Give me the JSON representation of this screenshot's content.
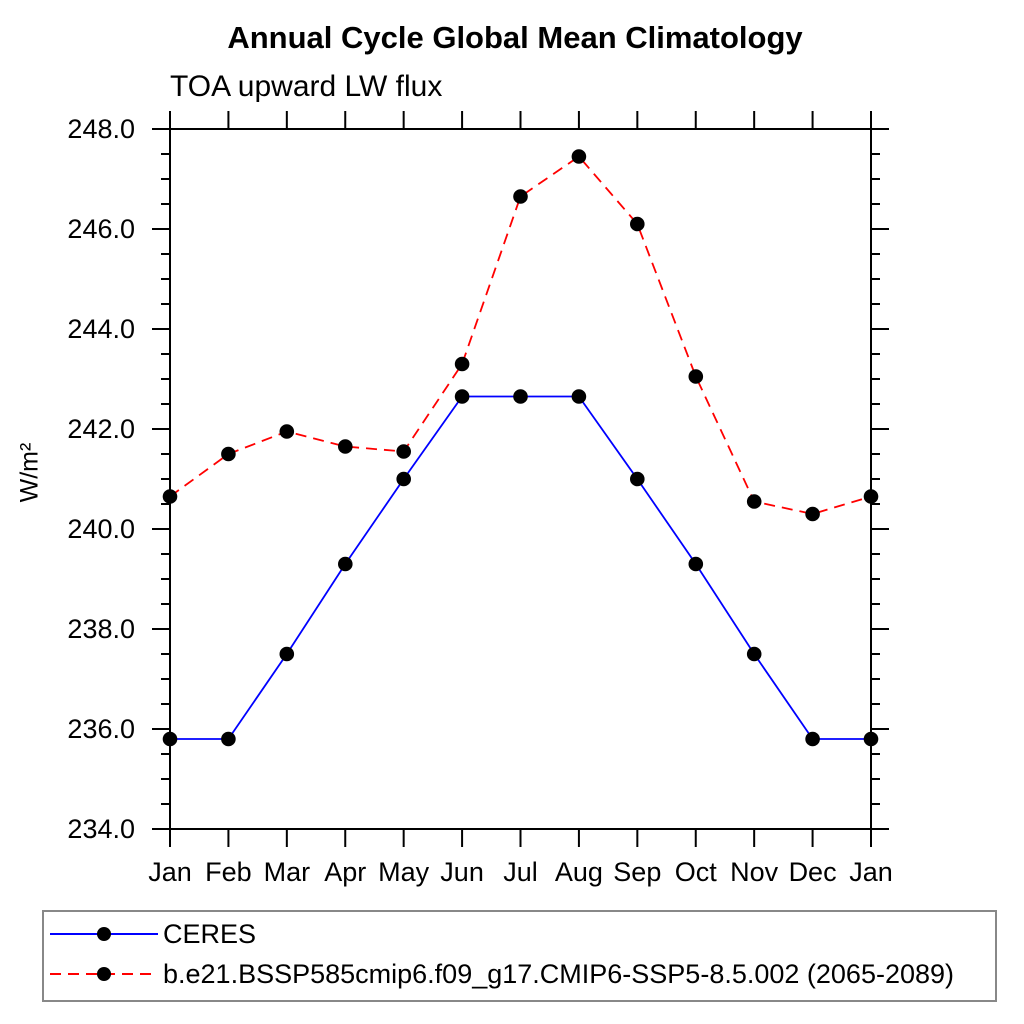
{
  "chart_data": {
    "type": "line",
    "title": "Annual Cycle Global Mean Climatology",
    "subtitle": "TOA upward LW flux",
    "ylabel": "W/m²",
    "xlabel": "",
    "categories": [
      "Jan",
      "Feb",
      "Mar",
      "Apr",
      "May",
      "Jun",
      "Jul",
      "Aug",
      "Sep",
      "Oct",
      "Nov",
      "Dec",
      "Jan"
    ],
    "ylim": [
      234.0,
      248.0
    ],
    "ytick_interval": 2.0,
    "ytick_minor_interval": 0.5,
    "ytick_label_format": "one_decimal",
    "grid": false,
    "legend_position": "bottom",
    "frame_color": "#000000",
    "marker_color": "#000000",
    "series": [
      {
        "name": "CERES",
        "color": "#0000ff",
        "line_style": "solid",
        "marker": "circle",
        "values": [
          235.8,
          235.8,
          237.5,
          239.3,
          241.0,
          242.65,
          242.65,
          242.65,
          241.0,
          239.3,
          237.5,
          235.8,
          235.8
        ]
      },
      {
        "name": "b.e21.BSSP585cmip6.f09_g17.CMIP6-SSP5-8.5.002 (2065-2089)",
        "color": "#ff0000",
        "line_style": "dashed",
        "marker": "circle",
        "values": [
          240.65,
          241.5,
          241.95,
          241.65,
          241.55,
          243.3,
          246.65,
          247.45,
          246.1,
          243.05,
          240.55,
          240.3,
          240.65
        ]
      }
    ]
  }
}
